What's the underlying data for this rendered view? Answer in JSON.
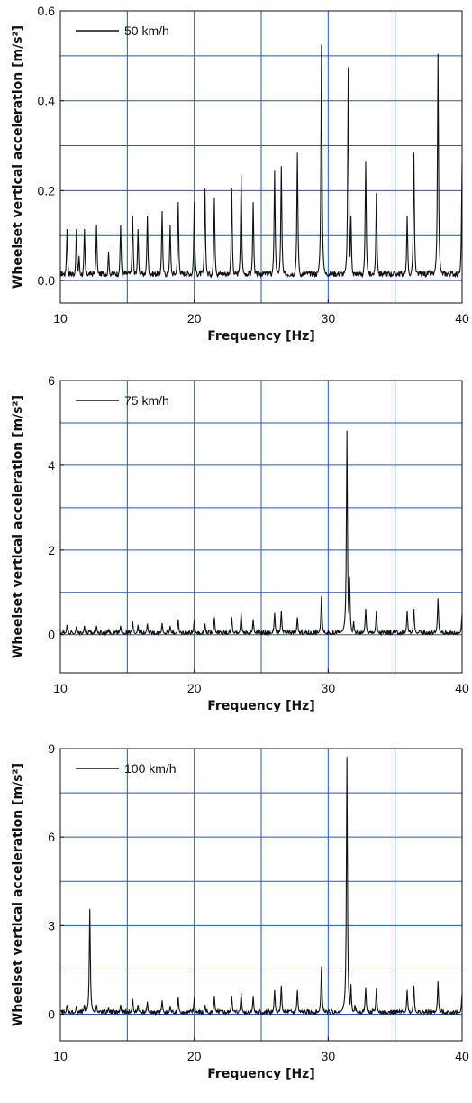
{
  "colors": {
    "grid": "#2a52be",
    "series": "#111111",
    "frame": "#111111"
  },
  "chart_data": [
    {
      "type": "line",
      "xlabel": "Frequency  [Hz]",
      "ylabel": "Wheelset vertical acceleration [m/s²]",
      "xlim": [
        10,
        40
      ],
      "ylim": [
        -0.05,
        0.6
      ],
      "xticks": [
        10,
        20,
        30,
        40
      ],
      "yticks": [
        0.0,
        0.2,
        0.4,
        0.6
      ],
      "ytick_labels": [
        "0.0",
        "0.2",
        "0.4",
        "0.6"
      ],
      "xgrid": [
        10,
        15,
        20,
        25,
        30,
        35,
        40
      ],
      "ygrid": [
        0.0,
        0.1,
        0.2,
        0.3,
        0.4,
        0.5,
        0.6
      ],
      "grid": true,
      "legend_position": "top-left",
      "baseline": 0.015,
      "series": [
        {
          "name": "50 km/h",
          "peaks": [
            [
              10.5,
              0.11
            ],
            [
              11.2,
              0.11
            ],
            [
              11.4,
              0.05
            ],
            [
              11.8,
              0.11
            ],
            [
              12.7,
              0.12
            ],
            [
              13.6,
              0.06
            ],
            [
              14.5,
              0.12
            ],
            [
              15.4,
              0.14
            ],
            [
              15.8,
              0.11
            ],
            [
              16.5,
              0.14
            ],
            [
              17.6,
              0.15
            ],
            [
              18.2,
              0.12
            ],
            [
              18.8,
              0.17
            ],
            [
              20.0,
              0.17
            ],
            [
              20.8,
              0.2
            ],
            [
              21.5,
              0.18
            ],
            [
              22.8,
              0.2
            ],
            [
              23.5,
              0.23
            ],
            [
              24.4,
              0.17
            ],
            [
              26.0,
              0.24
            ],
            [
              26.5,
              0.25
            ],
            [
              27.7,
              0.28
            ],
            [
              29.5,
              0.52
            ],
            [
              31.5,
              0.47
            ],
            [
              31.7,
              0.14
            ],
            [
              32.8,
              0.26
            ],
            [
              33.6,
              0.19
            ],
            [
              35.9,
              0.14
            ],
            [
              36.4,
              0.28
            ],
            [
              38.2,
              0.5
            ],
            [
              40.0,
              0.26
            ]
          ]
        }
      ]
    },
    {
      "type": "line",
      "xlabel": "Frequency  [Hz]",
      "ylabel": "Wheelset vertical acceleration [m/s²]",
      "xlim": [
        10,
        40
      ],
      "ylim": [
        -0.9,
        6
      ],
      "xticks": [
        10,
        20,
        30,
        40
      ],
      "yticks": [
        0,
        2,
        4,
        6
      ],
      "ytick_labels": [
        "0",
        "2",
        "4",
        "6"
      ],
      "xgrid": [
        10,
        15,
        20,
        25,
        30,
        35,
        40
      ],
      "ygrid": [
        0,
        1,
        2,
        3,
        4,
        5,
        6
      ],
      "grid": true,
      "legend_position": "top-left",
      "baseline": 0.04,
      "series": [
        {
          "name": "75 km/h",
          "peaks": [
            [
              10.5,
              0.22
            ],
            [
              11.2,
              0.18
            ],
            [
              11.8,
              0.2
            ],
            [
              12.7,
              0.2
            ],
            [
              13.6,
              0.1
            ],
            [
              14.5,
              0.2
            ],
            [
              15.4,
              0.3
            ],
            [
              15.8,
              0.22
            ],
            [
              16.5,
              0.25
            ],
            [
              17.6,
              0.26
            ],
            [
              18.2,
              0.2
            ],
            [
              18.8,
              0.35
            ],
            [
              20.0,
              0.35
            ],
            [
              20.8,
              0.25
            ],
            [
              21.5,
              0.4
            ],
            [
              22.8,
              0.4
            ],
            [
              23.5,
              0.5
            ],
            [
              24.4,
              0.35
            ],
            [
              26.0,
              0.5
            ],
            [
              26.5,
              0.55
            ],
            [
              27.7,
              0.4
            ],
            [
              29.5,
              0.9
            ],
            [
              31.4,
              4.8
            ],
            [
              31.6,
              1.35
            ],
            [
              31.9,
              0.3
            ],
            [
              32.8,
              0.6
            ],
            [
              33.6,
              0.55
            ],
            [
              35.9,
              0.55
            ],
            [
              36.4,
              0.6
            ],
            [
              38.2,
              0.85
            ],
            [
              40.0,
              0.5
            ]
          ]
        }
      ]
    },
    {
      "type": "line",
      "xlabel": "Frequency  [Hz]",
      "ylabel": "Wheelset vertical acceleration [m/s²]",
      "xlim": [
        10,
        40
      ],
      "ylim": [
        -0.9,
        9
      ],
      "xticks": [
        10,
        20,
        30,
        40
      ],
      "yticks": [
        0,
        3,
        6,
        9
      ],
      "ytick_labels": [
        "0",
        "3",
        "6",
        "9"
      ],
      "xgrid": [
        10,
        15,
        20,
        25,
        30,
        35,
        40
      ],
      "ygrid": [
        0,
        1.5,
        3,
        4.5,
        6,
        7.5,
        9
      ],
      "grid": true,
      "legend_position": "top-left",
      "baseline": 0.06,
      "series": [
        {
          "name": "100 km/h",
          "peaks": [
            [
              10.5,
              0.3
            ],
            [
              11.2,
              0.25
            ],
            [
              11.8,
              0.3
            ],
            [
              12.2,
              3.55
            ],
            [
              12.7,
              0.3
            ],
            [
              13.6,
              0.2
            ],
            [
              14.5,
              0.3
            ],
            [
              15.4,
              0.5
            ],
            [
              15.8,
              0.3
            ],
            [
              16.5,
              0.4
            ],
            [
              17.6,
              0.45
            ],
            [
              18.2,
              0.25
            ],
            [
              18.8,
              0.55
            ],
            [
              20.0,
              0.55
            ],
            [
              20.8,
              0.3
            ],
            [
              21.5,
              0.6
            ],
            [
              22.8,
              0.6
            ],
            [
              23.5,
              0.7
            ],
            [
              24.4,
              0.6
            ],
            [
              26.0,
              0.8
            ],
            [
              26.5,
              0.95
            ],
            [
              27.7,
              0.8
            ],
            [
              29.5,
              1.6
            ],
            [
              31.4,
              8.7
            ],
            [
              31.7,
              1.0
            ],
            [
              32.0,
              0.3
            ],
            [
              32.8,
              0.9
            ],
            [
              33.6,
              0.85
            ],
            [
              35.9,
              0.8
            ],
            [
              36.4,
              0.95
            ],
            [
              38.2,
              1.1
            ],
            [
              40.0,
              0.7
            ]
          ]
        }
      ]
    }
  ]
}
